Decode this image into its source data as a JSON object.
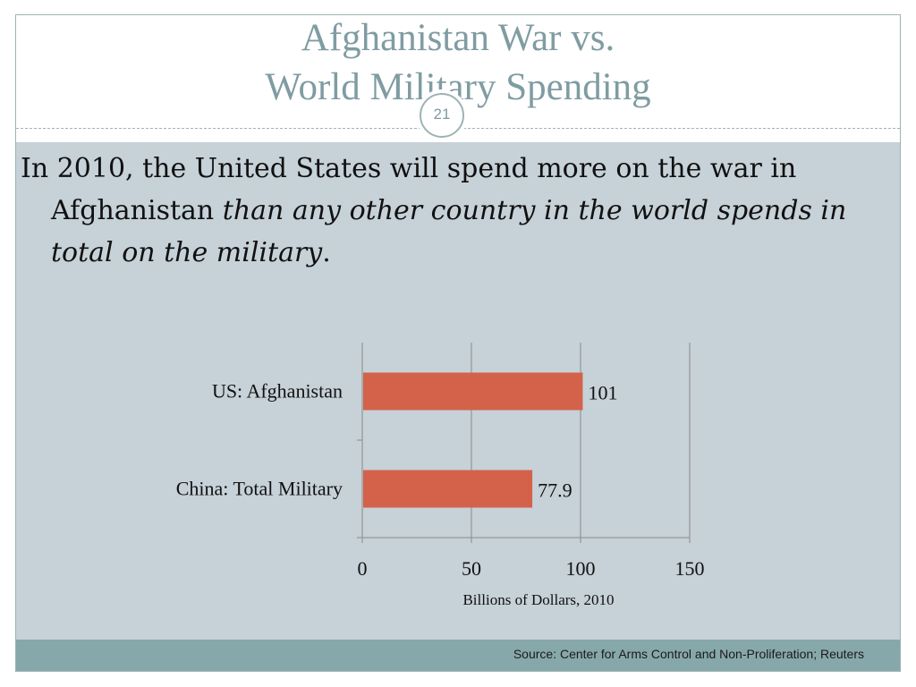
{
  "slide": {
    "title_line1": "Afghanistan War vs.",
    "title_line2": "World Military Spending",
    "page_number": "21",
    "statement_plain": "In 2010, the United States will spend more on the war in Afghanistan ",
    "statement_italic": "than any other country in the world spends in total on the military",
    "statement_end": ".",
    "source": "Source: Center for Arms Control and Non-Proliferation; Reuters"
  },
  "colors": {
    "bar": "#d4624a",
    "title": "#7f9ca2",
    "body_bg": "#c6d1d8",
    "footer_bg": "#87a8aa"
  },
  "chart_data": {
    "type": "bar",
    "orientation": "horizontal",
    "categories": [
      "US: Afghanistan",
      "China: Total Military"
    ],
    "values": [
      101,
      77.9
    ],
    "value_labels": [
      "101",
      "77.9"
    ],
    "xlabel": "Billions of Dollars, 2010",
    "xlim": [
      0,
      150
    ],
    "xticks": [
      "0",
      "50",
      "100",
      "150"
    ],
    "grid": "vertical",
    "legend": "none"
  }
}
